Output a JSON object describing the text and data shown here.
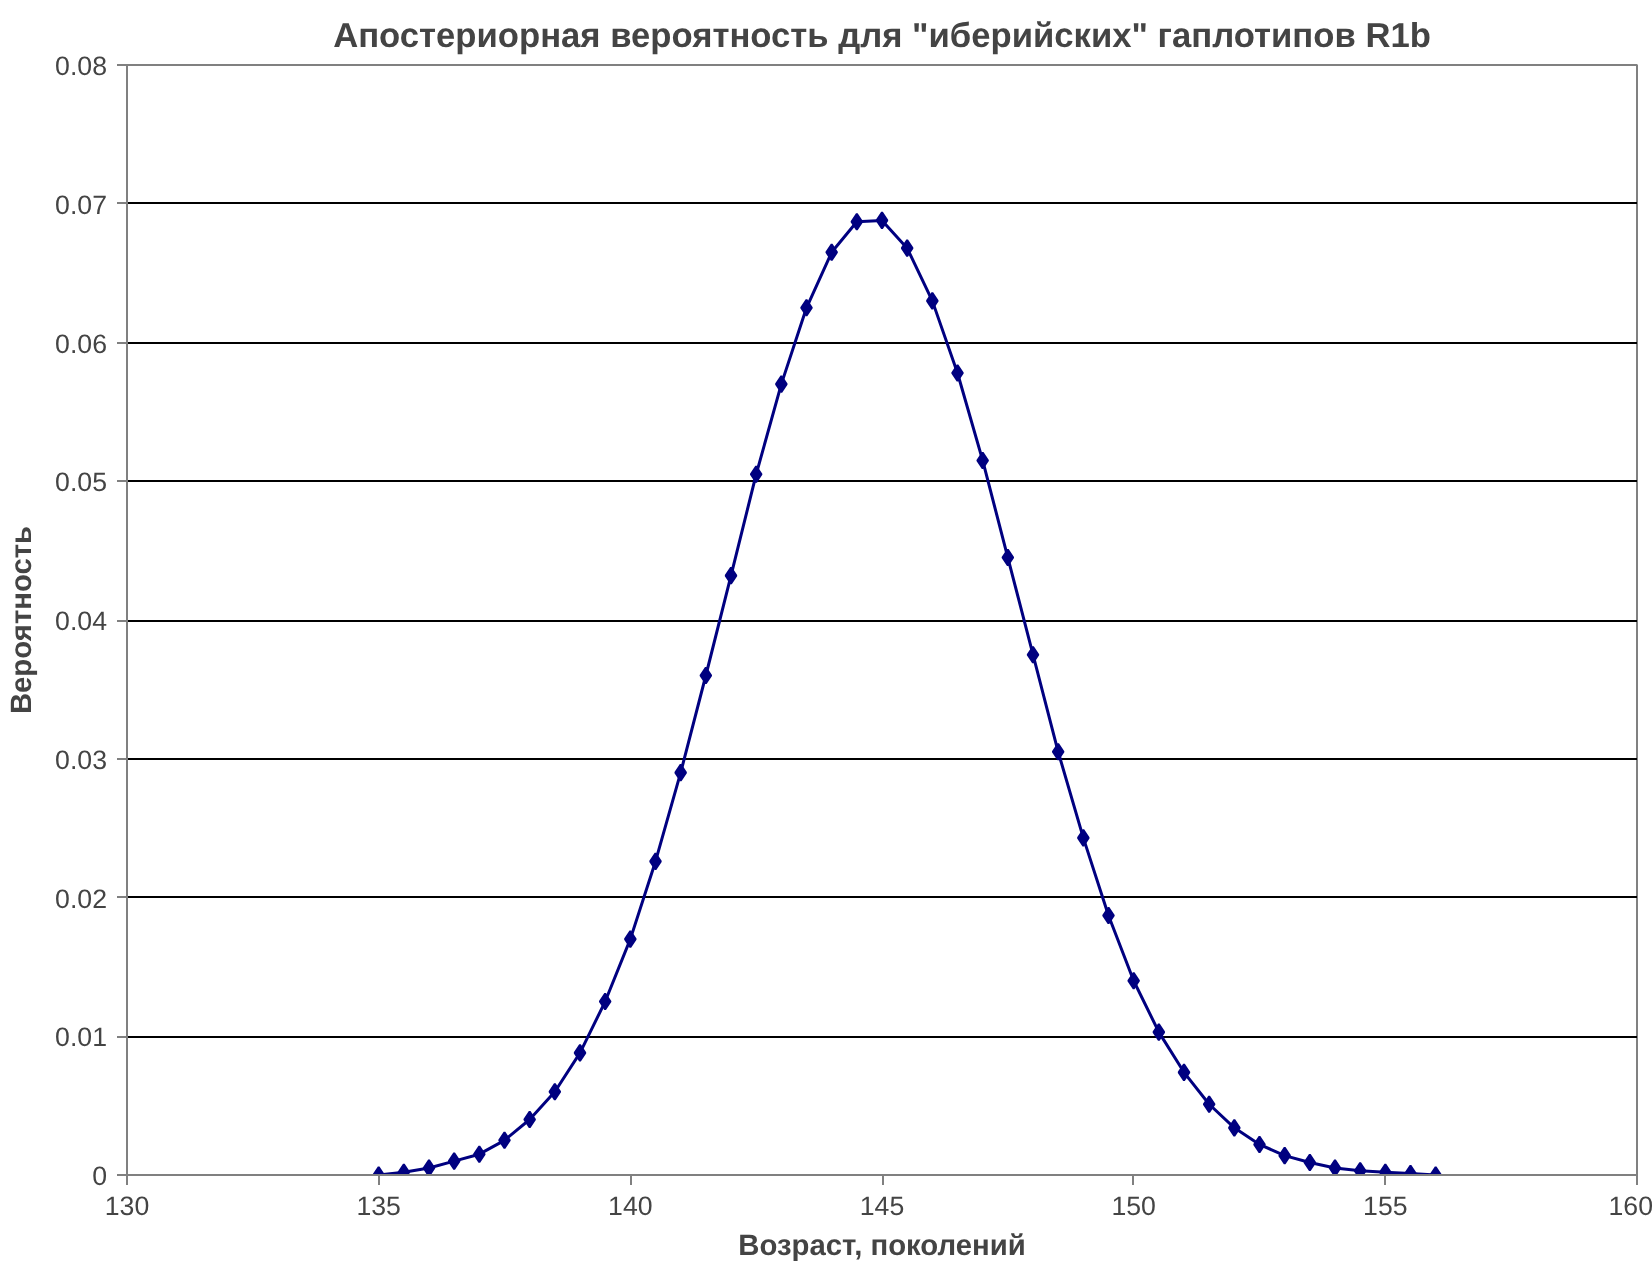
{
  "chart_data": {
    "type": "line",
    "title": "Апостериорная вероятность для \"иберийских\" гаплотипов R1b",
    "xlabel": "Возраст, поколений",
    "ylabel": "Вероятность",
    "x": [
      135,
      135.5,
      136,
      136.5,
      137,
      137.5,
      138,
      138.5,
      139,
      139.5,
      140,
      140.5,
      141,
      141.5,
      142,
      142.5,
      143,
      143.5,
      144,
      144.5,
      145,
      145.5,
      146,
      146.5,
      147,
      147.5,
      148,
      148.5,
      149,
      149.5,
      150,
      150.5,
      151,
      151.5,
      152,
      152.5,
      153,
      153.5,
      154,
      154.5,
      155,
      155.5,
      156
    ],
    "series": [
      {
        "color": "#000080",
        "values": [
          0.0,
          0.0002,
          0.0005,
          0.001,
          0.0015,
          0.0025,
          0.004,
          0.006,
          0.0088,
          0.0125,
          0.017,
          0.0226,
          0.029,
          0.036,
          0.0432,
          0.0505,
          0.057,
          0.0625,
          0.0665,
          0.0687,
          0.0688,
          0.0668,
          0.063,
          0.0578,
          0.0515,
          0.0445,
          0.0375,
          0.0305,
          0.0243,
          0.0187,
          0.014,
          0.0103,
          0.0074,
          0.0051,
          0.0034,
          0.0022,
          0.0014,
          0.0009,
          0.0005,
          0.0003,
          0.0002,
          0.0001,
          0.0
        ]
      }
    ],
    "xlim": [
      130,
      160
    ],
    "xticks": [
      130,
      135,
      140,
      145,
      150,
      155,
      160
    ],
    "ylim": [
      0,
      0.08
    ],
    "yticks": [
      0,
      0.01,
      0.02,
      0.03,
      0.04,
      0.05,
      0.06,
      0.07,
      0.08
    ],
    "grid": "y",
    "marker": "diamond",
    "line_style": "solid"
  }
}
